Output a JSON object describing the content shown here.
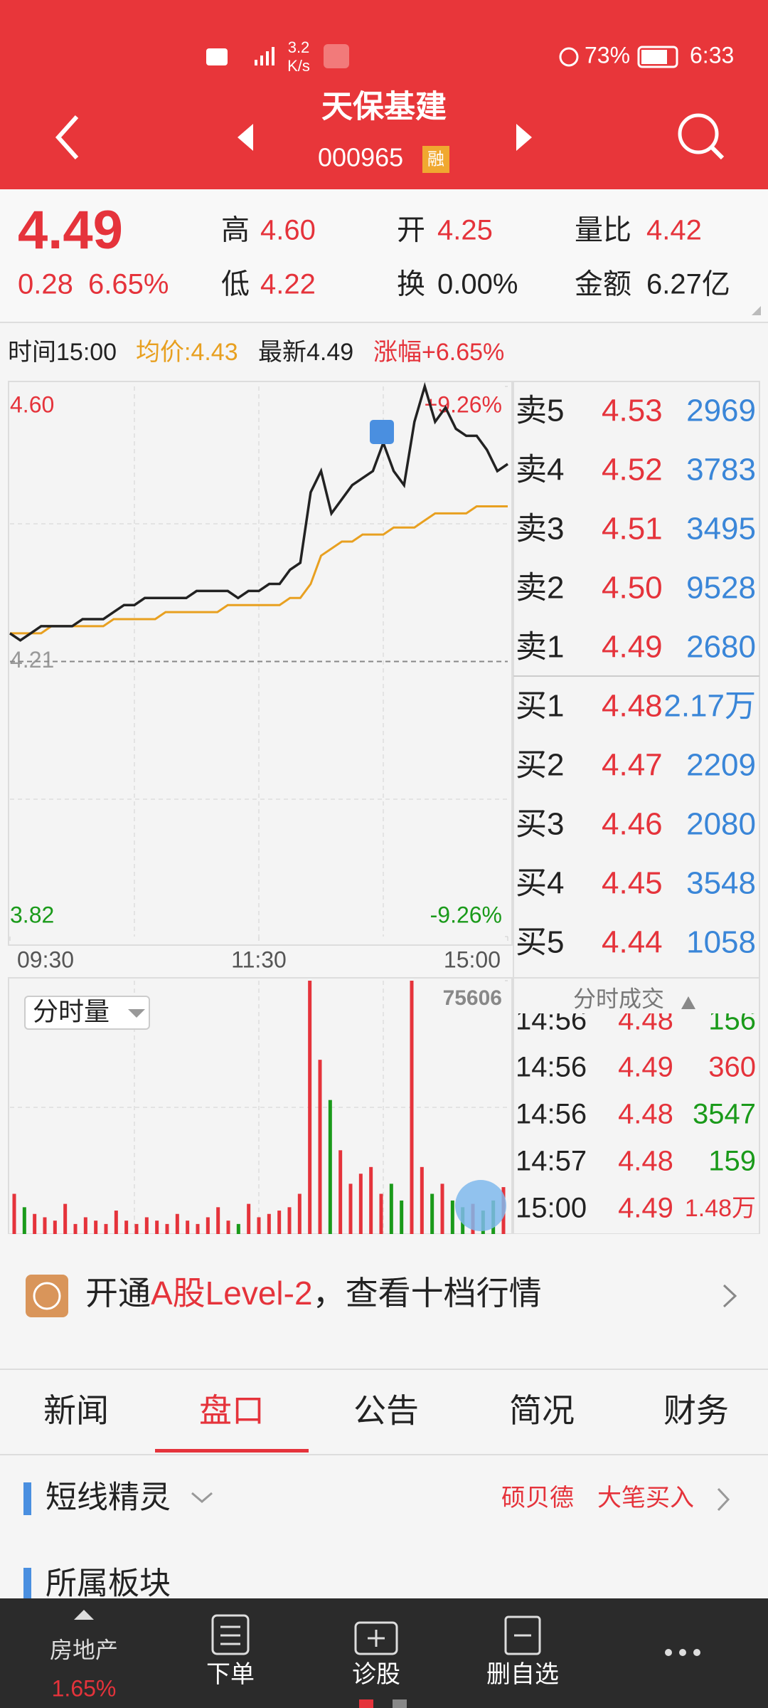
{
  "status_bar": {
    "network_speed": "3.2",
    "speed_unit": "K/s",
    "battery": "73%",
    "time": "6:33"
  },
  "header": {
    "name": "天保基建",
    "code": "000965",
    "badge": "融"
  },
  "quote": {
    "price": "4.49",
    "change": "0.28",
    "change_pct": "6.65%",
    "stats": [
      {
        "label": "高",
        "value": "4.60",
        "color": "#e5333b"
      },
      {
        "label": "低",
        "value": "4.22",
        "color": "#e5333b"
      },
      {
        "label": "开",
        "value": "4.25",
        "color": "#e5333b"
      },
      {
        "label": "换",
        "value": "0.00%",
        "color": "#222222"
      },
      {
        "label": "量比",
        "value": "4.42",
        "color": "#e5333b"
      },
      {
        "label": "金额",
        "value": "6.27亿",
        "color": "#222222"
      }
    ]
  },
  "info_line": [
    {
      "text": "时间15:00",
      "color": "#222222"
    },
    {
      "text": "均价:4.43",
      "color": "#e8a020"
    },
    {
      "text": "最新4.49",
      "color": "#222222"
    },
    {
      "text": "涨幅+6.65%",
      "color": "#e5333b"
    }
  ],
  "chart_data": [
    {
      "type": "line",
      "xlim": [
        0,
        240
      ],
      "xticks": [
        {
          "value": 0,
          "label": "09:30"
        },
        {
          "value": 120,
          "label": "11:30"
        },
        {
          "value": 240,
          "label": "15:00"
        }
      ],
      "ylim": [
        3.82,
        4.6
      ],
      "yticks": [
        3.82,
        4.21,
        {
          "value": 4.6,
          "label": "4.60"
        }
      ],
      "y2lim": [
        -9.26,
        9.26
      ],
      "y2ticks": [
        {
          "value": -9.26,
          "label": "-9.26%"
        },
        {
          "value": 9.26,
          "label": "+9.26%"
        }
      ],
      "up_color": "#e5333b",
      "down_color": "#1a9a1a",
      "x": [
        0,
        5,
        10,
        15,
        20,
        25,
        30,
        35,
        40,
        45,
        50,
        55,
        60,
        65,
        70,
        75,
        80,
        85,
        90,
        95,
        100,
        105,
        110,
        115,
        120,
        125,
        130,
        135,
        140,
        145,
        150,
        155,
        160,
        165,
        170,
        175,
        180,
        185,
        190,
        195,
        200,
        205,
        210,
        215,
        220,
        225,
        230,
        235,
        240
      ],
      "series": [
        {
          "color": "#222222",
          "values": [
            4.25,
            4.24,
            4.25,
            4.26,
            4.26,
            4.26,
            4.26,
            4.27,
            4.27,
            4.27,
            4.28,
            4.29,
            4.29,
            4.3,
            4.3,
            4.3,
            4.3,
            4.3,
            4.31,
            4.31,
            4.31,
            4.31,
            4.3,
            4.31,
            4.31,
            4.32,
            4.32,
            4.34,
            4.35,
            4.45,
            4.48,
            4.42,
            4.44,
            4.46,
            4.47,
            4.48,
            4.52,
            4.48,
            4.46,
            4.55,
            4.6,
            4.55,
            4.57,
            4.54,
            4.53,
            4.53,
            4.51,
            4.48,
            4.49
          ]
        },
        {
          "color": "#e8a020",
          "values": [
            4.25,
            4.25,
            4.25,
            4.25,
            4.26,
            4.26,
            4.26,
            4.26,
            4.26,
            4.26,
            4.27,
            4.27,
            4.27,
            4.27,
            4.27,
            4.28,
            4.28,
            4.28,
            4.28,
            4.28,
            4.28,
            4.29,
            4.29,
            4.29,
            4.29,
            4.29,
            4.29,
            4.3,
            4.3,
            4.32,
            4.36,
            4.37,
            4.38,
            4.38,
            4.39,
            4.39,
            4.39,
            4.4,
            4.4,
            4.4,
            4.41,
            4.42,
            4.42,
            4.42,
            4.42,
            4.43,
            4.43,
            4.43,
            4.43
          ]
        }
      ]
    },
    {
      "type": "bar",
      "title": "分时量",
      "xlim": [
        0,
        240
      ],
      "ylim": [
        0,
        75606
      ],
      "yticks": [
        75606
      ],
      "x": [
        0,
        5,
        10,
        15,
        20,
        25,
        30,
        35,
        40,
        45,
        50,
        55,
        60,
        65,
        70,
        75,
        80,
        85,
        90,
        95,
        100,
        105,
        110,
        115,
        120,
        125,
        130,
        135,
        140,
        145,
        150,
        155,
        160,
        165,
        170,
        175,
        180,
        185,
        190,
        195,
        200,
        205,
        210,
        215,
        220,
        225,
        230,
        235,
        240
      ],
      "values": [
        12000,
        8000,
        6000,
        5000,
        4000,
        9000,
        3000,
        5000,
        4000,
        3000,
        7000,
        4000,
        3000,
        5000,
        4000,
        3000,
        6000,
        4000,
        3000,
        5000,
        8000,
        4000,
        3000,
        9000,
        5000,
        6000,
        7000,
        8000,
        12000,
        75606,
        52000,
        40000,
        25000,
        15000,
        18000,
        20000,
        12000,
        15000,
        10000,
        75606,
        20000,
        12000,
        15000,
        10000,
        8000,
        9000,
        7000,
        10000,
        14000
      ]
    }
  ],
  "order_book": [
    {
      "label": "卖5",
      "price": "4.53",
      "volume": "2969"
    },
    {
      "label": "卖4",
      "price": "4.52",
      "volume": "3783"
    },
    {
      "label": "卖3",
      "price": "4.51",
      "volume": "3495"
    },
    {
      "label": "卖2",
      "price": "4.50",
      "volume": "9528"
    },
    {
      "label": "卖1",
      "price": "4.49",
      "volume": "2680"
    },
    {
      "label": "买1",
      "price": "4.48",
      "volume": "2.17万"
    },
    {
      "label": "买2",
      "price": "4.47",
      "volume": "2209"
    },
    {
      "label": "买3",
      "price": "4.46",
      "volume": "2080"
    },
    {
      "label": "买4",
      "price": "4.45",
      "volume": "3548"
    },
    {
      "label": "买5",
      "price": "4.44",
      "volume": "1058"
    }
  ],
  "trades": {
    "title": "分时成交",
    "rows": [
      {
        "time": "14:56",
        "price": "4.48",
        "volume": "156",
        "color": "#1a9a1a"
      },
      {
        "time": "14:56",
        "price": "4.49",
        "volume": "360",
        "color": "#e5333b"
      },
      {
        "time": "14:56",
        "price": "4.48",
        "volume": "3547",
        "color": "#1a9a1a"
      },
      {
        "time": "14:57",
        "price": "4.48",
        "volume": "159",
        "color": "#1a9a1a"
      },
      {
        "time": "15:00",
        "price": "4.49",
        "volume": "1.48万",
        "color": "#e5333b"
      }
    ]
  },
  "banner": {
    "prefix": "开通",
    "highlight": "A股Level-2",
    "suffix": "，查看十档行情"
  },
  "tabs": {
    "items": [
      "新闻",
      "盘口",
      "公告",
      "简况",
      "财务"
    ],
    "active": 1
  },
  "sections": {
    "title": "短线精灵",
    "links": [
      "硕贝德",
      "大笔买入"
    ],
    "next_title": "所属板块"
  },
  "bottom_nav": {
    "sector": "房地产",
    "sector_change": "1.65%",
    "items": [
      "下单",
      "诊股",
      "删自选"
    ]
  }
}
